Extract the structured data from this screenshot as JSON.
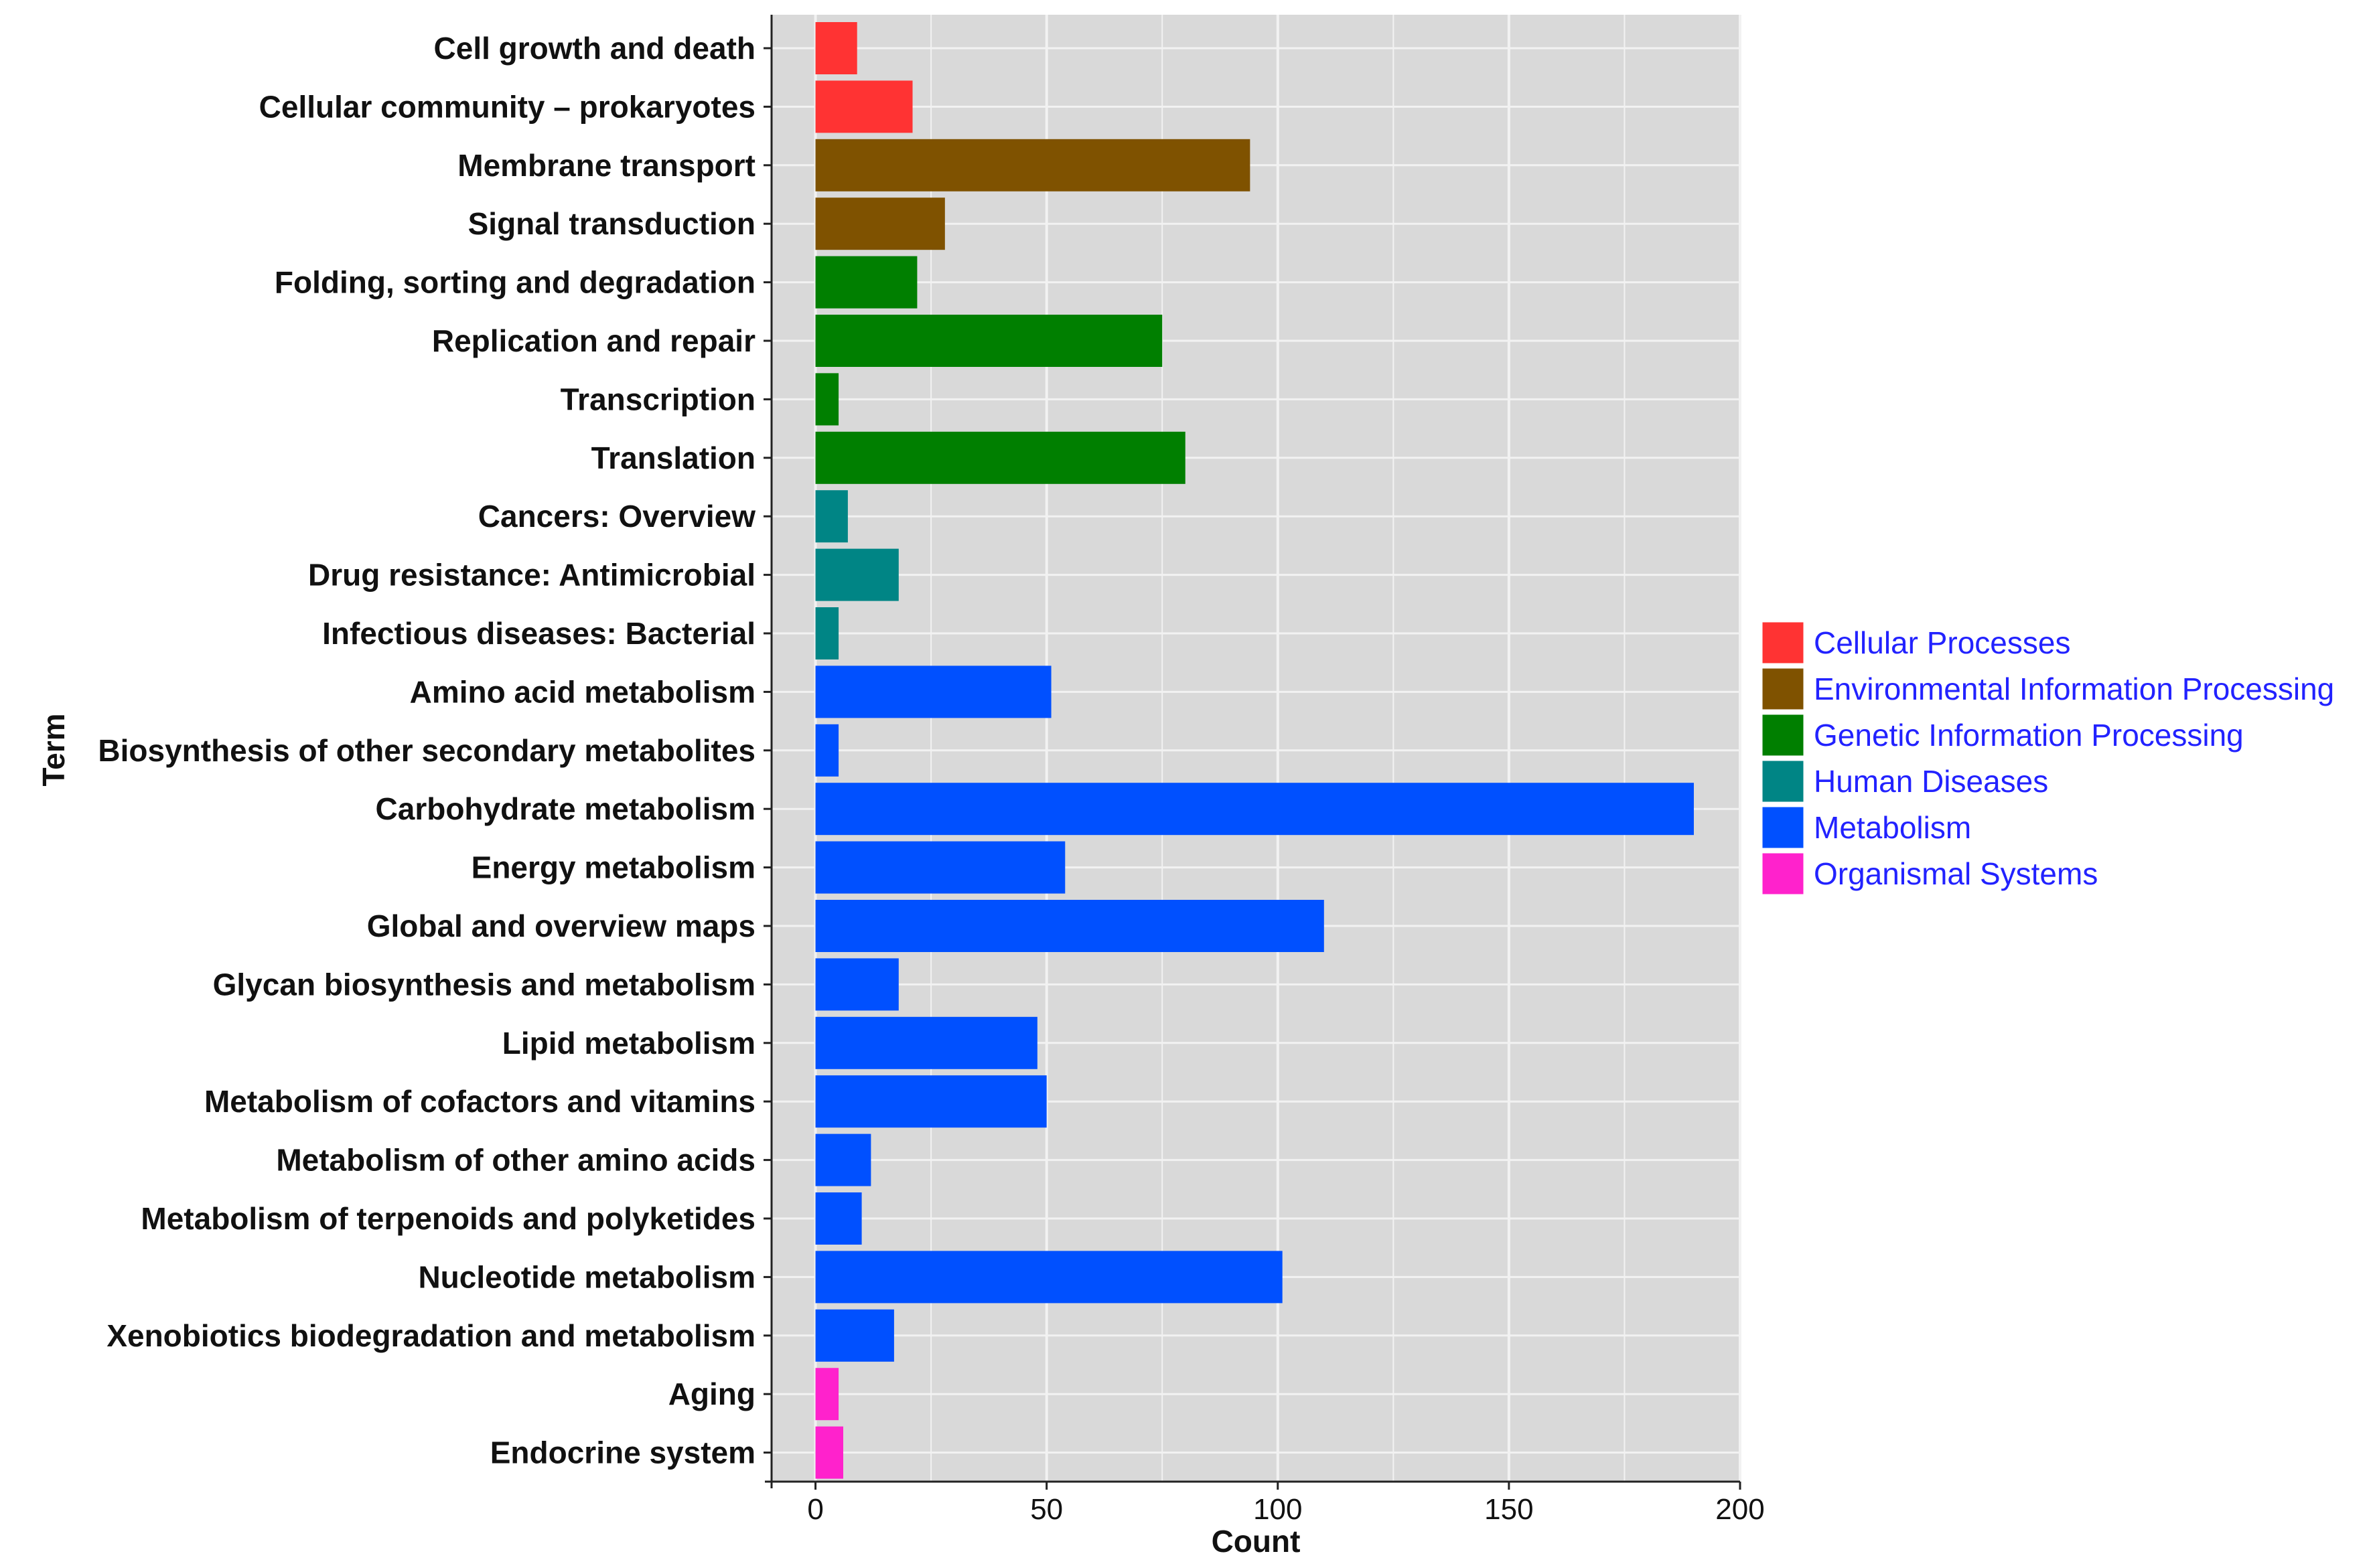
{
  "chart_data": {
    "type": "bar",
    "orientation": "horizontal",
    "xlabel": "Count",
    "ylabel": "Term",
    "xlim": [
      -9.5,
      200
    ],
    "xticks": [
      0,
      50,
      100,
      150,
      200
    ],
    "xtick_labels": [
      "0",
      "50",
      "100",
      "150",
      "200"
    ],
    "grid": true,
    "legend_position": "right",
    "categories_colors": {
      "Cellular Processes": "#FF3333",
      "Environmental Information Processing": "#7F5200",
      "Genetic Information Processing": "#007F00",
      "Human Diseases": "#008585",
      "Metabolism": "#0050FF",
      "Organismal Systems": "#FF22CC"
    },
    "legend": [
      {
        "label": "Cellular Processes",
        "color": "#FF3333"
      },
      {
        "label": "Environmental Information Processing",
        "color": "#7F5200"
      },
      {
        "label": "Genetic Information Processing",
        "color": "#007F00"
      },
      {
        "label": "Human Diseases",
        "color": "#008585"
      },
      {
        "label": "Metabolism",
        "color": "#0050FF"
      },
      {
        "label": "Organismal Systems",
        "color": "#FF22CC"
      }
    ],
    "legend_text_color": "#2222FF",
    "panel_color": "#D9D9D9",
    "grid_color": "#F2F2F2",
    "bars": [
      {
        "term": "Cell growth and death",
        "value": 9,
        "category": "Cellular Processes"
      },
      {
        "term": "Cellular community – prokaryotes",
        "value": 21,
        "category": "Cellular Processes"
      },
      {
        "term": "Membrane transport",
        "value": 94,
        "category": "Environmental Information Processing"
      },
      {
        "term": "Signal transduction",
        "value": 28,
        "category": "Environmental Information Processing"
      },
      {
        "term": "Folding, sorting and degradation",
        "value": 22,
        "category": "Genetic Information Processing"
      },
      {
        "term": "Replication and repair",
        "value": 75,
        "category": "Genetic Information Processing"
      },
      {
        "term": "Transcription",
        "value": 5,
        "category": "Genetic Information Processing"
      },
      {
        "term": "Translation",
        "value": 80,
        "category": "Genetic Information Processing"
      },
      {
        "term": "Cancers: Overview",
        "value": 7,
        "category": "Human Diseases"
      },
      {
        "term": "Drug resistance: Antimicrobial",
        "value": 18,
        "category": "Human Diseases"
      },
      {
        "term": "Infectious diseases: Bacterial",
        "value": 5,
        "category": "Human Diseases"
      },
      {
        "term": "Amino acid metabolism",
        "value": 51,
        "category": "Metabolism"
      },
      {
        "term": "Biosynthesis of other secondary metabolites",
        "value": 5,
        "category": "Metabolism"
      },
      {
        "term": "Carbohydrate metabolism",
        "value": 190,
        "category": "Metabolism"
      },
      {
        "term": "Energy metabolism",
        "value": 54,
        "category": "Metabolism"
      },
      {
        "term": "Global and overview maps",
        "value": 110,
        "category": "Metabolism"
      },
      {
        "term": "Glycan biosynthesis and metabolism",
        "value": 18,
        "category": "Metabolism"
      },
      {
        "term": "Lipid metabolism",
        "value": 48,
        "category": "Metabolism"
      },
      {
        "term": "Metabolism of cofactors and vitamins",
        "value": 50,
        "category": "Metabolism"
      },
      {
        "term": "Metabolism of other amino acids",
        "value": 12,
        "category": "Metabolism"
      },
      {
        "term": "Metabolism of terpenoids and polyketides",
        "value": 10,
        "category": "Metabolism"
      },
      {
        "term": "Nucleotide metabolism",
        "value": 101,
        "category": "Metabolism"
      },
      {
        "term": "Xenobiotics biodegradation and metabolism",
        "value": 17,
        "category": "Metabolism"
      },
      {
        "term": "Aging",
        "value": 5,
        "category": "Organismal Systems"
      },
      {
        "term": "Endocrine system",
        "value": 6,
        "category": "Organismal Systems"
      }
    ]
  }
}
